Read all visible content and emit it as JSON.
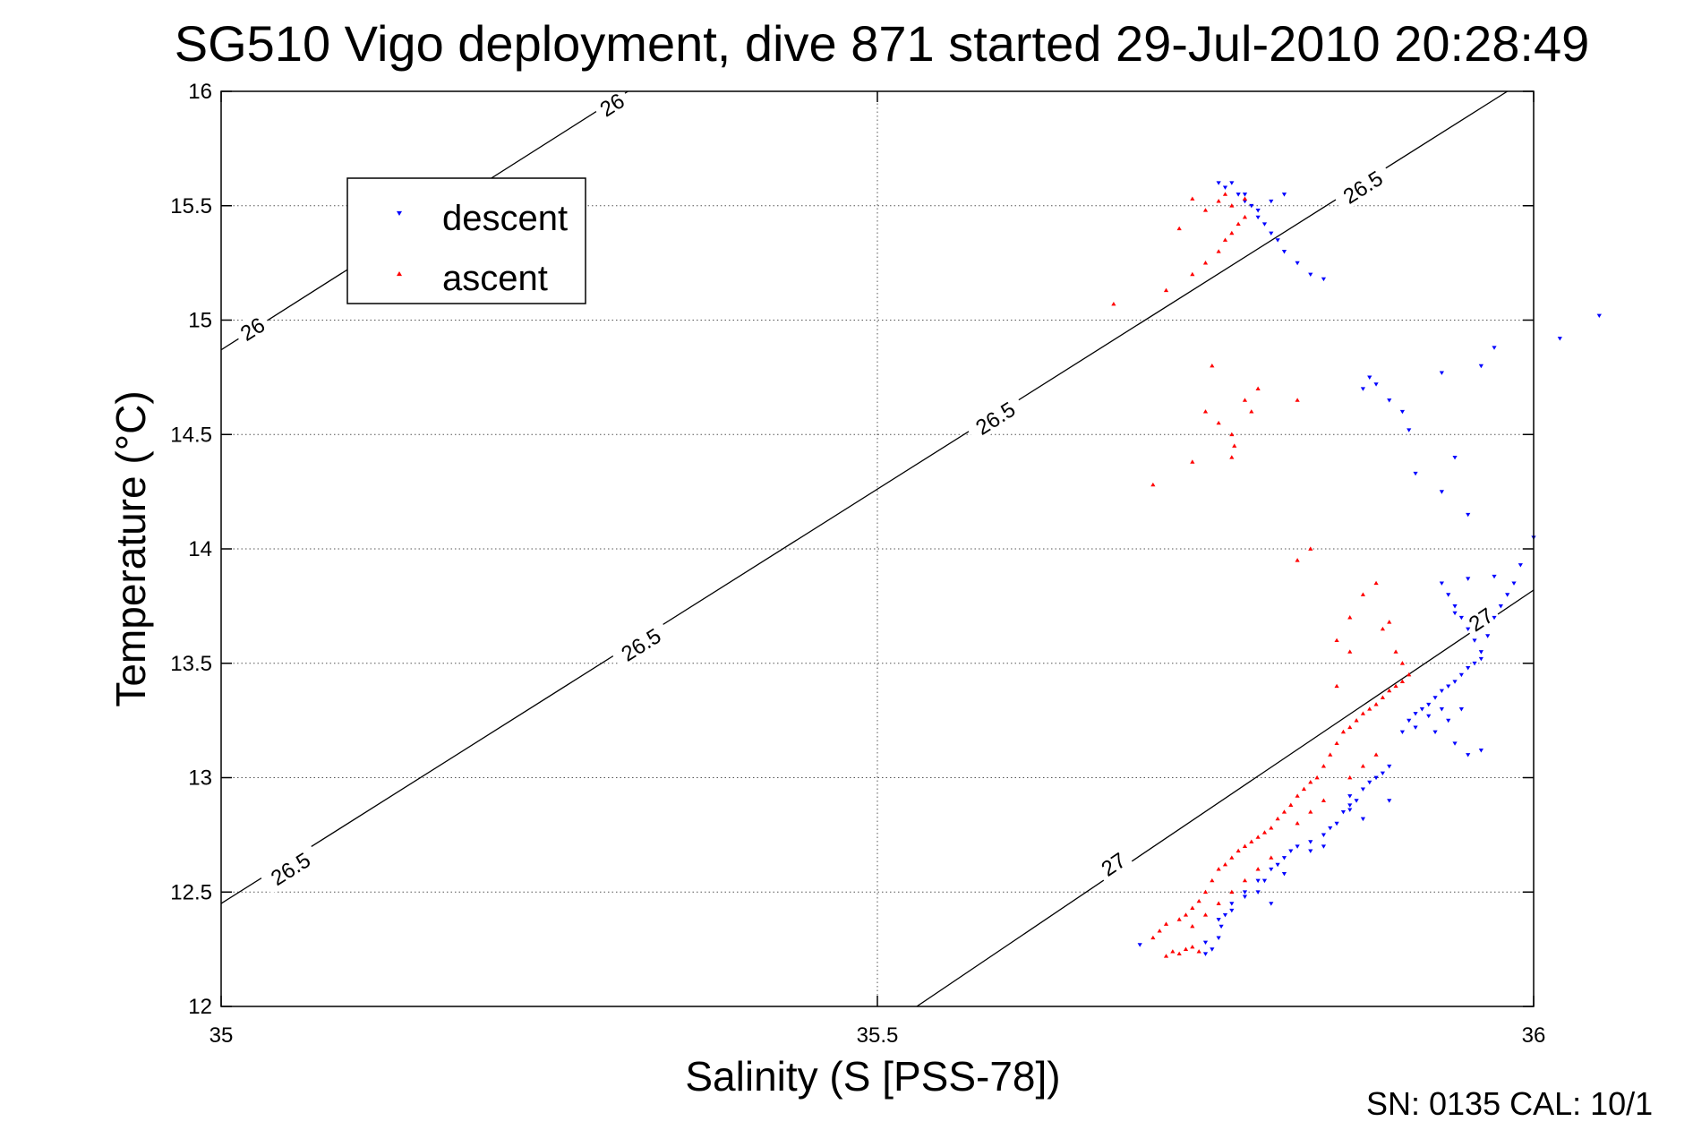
{
  "chart_data": {
    "type": "scatter",
    "title": "SG510 Vigo deployment, dive 871 started 29-Jul-2010 20:28:49",
    "xlabel": "Salinity (S [PSS-78])",
    "ylabel": "Temperature (°C)",
    "xlim": [
      35,
      36
    ],
    "ylim": [
      12,
      16
    ],
    "x_ticks": [
      "35",
      "35.5",
      "36"
    ],
    "y_ticks": [
      "12",
      "12.5",
      "13",
      "13.5",
      "14",
      "14.5",
      "15",
      "15.5",
      "16"
    ],
    "grid": true,
    "legend_position": "top-left",
    "footer": "SN: 0135  CAL: 10/1",
    "isopycnals": [
      {
        "label": "26",
        "points": [
          [
            35.0,
            14.87
          ],
          [
            35.31,
            16.0
          ]
        ],
        "label_positions": [
          [
            35.024,
            14.96
          ],
          [
            35.298,
            15.94
          ]
        ]
      },
      {
        "label": "26.5",
        "points": [
          [
            35.0,
            12.45
          ],
          [
            35.98,
            16.0
          ]
        ],
        "label_positions": [
          [
            35.053,
            12.6
          ],
          [
            35.32,
            13.58
          ],
          [
            35.59,
            14.57
          ],
          [
            35.87,
            15.58
          ]
        ]
      },
      {
        "label": "27",
        "points": [
          [
            35.53,
            12.0
          ],
          [
            36.0,
            13.82
          ]
        ],
        "label_positions": [
          [
            35.68,
            12.62
          ],
          [
            35.96,
            13.69
          ]
        ]
      }
    ],
    "series": [
      {
        "name": "descent",
        "color": "#0000ff",
        "marker": "triangle-down",
        "points": [
          [
            35.7,
            12.27
          ],
          [
            35.75,
            12.23
          ],
          [
            35.755,
            12.25
          ],
          [
            35.76,
            12.3
          ],
          [
            35.762,
            12.35
          ],
          [
            35.765,
            12.4
          ],
          [
            35.77,
            12.42
          ],
          [
            35.78,
            12.48
          ],
          [
            35.79,
            12.5
          ],
          [
            35.795,
            12.55
          ],
          [
            35.8,
            12.6
          ],
          [
            35.805,
            12.62
          ],
          [
            35.81,
            12.65
          ],
          [
            35.815,
            12.68
          ],
          [
            35.82,
            12.7
          ],
          [
            35.83,
            12.72
          ],
          [
            35.84,
            12.75
          ],
          [
            35.845,
            12.78
          ],
          [
            35.85,
            12.8
          ],
          [
            35.855,
            12.85
          ],
          [
            35.86,
            12.88
          ],
          [
            35.865,
            12.9
          ],
          [
            35.87,
            12.95
          ],
          [
            35.875,
            12.98
          ],
          [
            35.88,
            13.0
          ],
          [
            35.885,
            13.02
          ],
          [
            35.89,
            13.05
          ],
          [
            35.86,
            12.92
          ],
          [
            35.83,
            12.68
          ],
          [
            35.8,
            12.45
          ],
          [
            35.79,
            12.55
          ],
          [
            35.81,
            12.58
          ],
          [
            35.78,
            12.5
          ],
          [
            35.77,
            12.45
          ],
          [
            35.76,
            12.38
          ],
          [
            35.75,
            12.28
          ],
          [
            35.84,
            12.7
          ],
          [
            35.87,
            12.82
          ],
          [
            35.86,
            12.86
          ],
          [
            35.9,
            13.2
          ],
          [
            35.905,
            13.25
          ],
          [
            35.91,
            13.28
          ],
          [
            35.915,
            13.3
          ],
          [
            35.92,
            13.32
          ],
          [
            35.925,
            13.35
          ],
          [
            35.93,
            13.38
          ],
          [
            35.935,
            13.4
          ],
          [
            35.94,
            13.42
          ],
          [
            35.945,
            13.45
          ],
          [
            35.95,
            13.48
          ],
          [
            35.955,
            13.5
          ],
          [
            35.96,
            13.52
          ],
          [
            35.91,
            13.22
          ],
          [
            35.92,
            13.27
          ],
          [
            35.93,
            13.3
          ],
          [
            35.94,
            13.15
          ],
          [
            35.95,
            13.1
          ],
          [
            35.96,
            13.12
          ],
          [
            35.925,
            13.2
          ],
          [
            35.935,
            13.25
          ],
          [
            35.945,
            13.3
          ],
          [
            35.89,
            12.9
          ],
          [
            35.93,
            13.85
          ],
          [
            35.935,
            13.8
          ],
          [
            35.94,
            13.75
          ],
          [
            35.945,
            13.7
          ],
          [
            35.95,
            13.65
          ],
          [
            35.955,
            13.6
          ],
          [
            35.96,
            13.55
          ],
          [
            35.965,
            13.62
          ],
          [
            35.97,
            13.7
          ],
          [
            35.975,
            13.75
          ],
          [
            35.98,
            13.8
          ],
          [
            35.985,
            13.85
          ],
          [
            35.95,
            13.87
          ],
          [
            35.94,
            13.72
          ],
          [
            35.87,
            14.7
          ],
          [
            35.875,
            14.75
          ],
          [
            35.88,
            14.72
          ],
          [
            35.89,
            14.65
          ],
          [
            35.9,
            14.6
          ],
          [
            35.905,
            14.52
          ],
          [
            35.91,
            14.33
          ],
          [
            35.93,
            14.25
          ],
          [
            35.94,
            14.4
          ],
          [
            35.95,
            14.15
          ],
          [
            35.93,
            14.77
          ],
          [
            35.96,
            14.8
          ],
          [
            35.97,
            14.88
          ],
          [
            36.02,
            14.92
          ],
          [
            36.05,
            15.02
          ],
          [
            36.0,
            14.05
          ],
          [
            35.99,
            13.93
          ],
          [
            35.97,
            13.88
          ],
          [
            35.76,
            15.6
          ],
          [
            35.765,
            15.58
          ],
          [
            35.77,
            15.6
          ],
          [
            35.775,
            15.55
          ],
          [
            35.78,
            15.52
          ],
          [
            35.785,
            15.5
          ],
          [
            35.79,
            15.45
          ],
          [
            35.795,
            15.42
          ],
          [
            35.8,
            15.38
          ],
          [
            35.805,
            15.35
          ],
          [
            35.81,
            15.3
          ],
          [
            35.82,
            15.25
          ],
          [
            35.83,
            15.2
          ],
          [
            35.84,
            15.18
          ],
          [
            35.78,
            15.55
          ],
          [
            35.79,
            15.48
          ],
          [
            35.8,
            15.52
          ],
          [
            35.81,
            15.55
          ]
        ]
      },
      {
        "name": "ascent",
        "color": "#ff0000",
        "marker": "triangle-up",
        "points": [
          [
            35.72,
            12.22
          ],
          [
            35.725,
            12.24
          ],
          [
            35.73,
            12.23
          ],
          [
            35.735,
            12.25
          ],
          [
            35.74,
            12.26
          ],
          [
            35.745,
            12.24
          ],
          [
            35.71,
            12.3
          ],
          [
            35.715,
            12.33
          ],
          [
            35.72,
            12.36
          ],
          [
            35.73,
            12.38
          ],
          [
            35.735,
            12.4
          ],
          [
            35.74,
            12.43
          ],
          [
            35.745,
            12.46
          ],
          [
            35.75,
            12.5
          ],
          [
            35.755,
            12.55
          ],
          [
            35.76,
            12.6
          ],
          [
            35.765,
            12.62
          ],
          [
            35.77,
            12.65
          ],
          [
            35.775,
            12.68
          ],
          [
            35.78,
            12.7
          ],
          [
            35.785,
            12.72
          ],
          [
            35.79,
            12.74
          ],
          [
            35.795,
            12.76
          ],
          [
            35.8,
            12.78
          ],
          [
            35.805,
            12.82
          ],
          [
            35.81,
            12.85
          ],
          [
            35.815,
            12.88
          ],
          [
            35.82,
            12.92
          ],
          [
            35.825,
            12.95
          ],
          [
            35.83,
            12.98
          ],
          [
            35.835,
            13.0
          ],
          [
            35.84,
            13.05
          ],
          [
            35.845,
            13.1
          ],
          [
            35.85,
            13.15
          ],
          [
            35.855,
            13.2
          ],
          [
            35.86,
            13.22
          ],
          [
            35.865,
            13.25
          ],
          [
            35.87,
            13.28
          ],
          [
            35.875,
            13.3
          ],
          [
            35.88,
            13.32
          ],
          [
            35.885,
            13.35
          ],
          [
            35.89,
            13.38
          ],
          [
            35.895,
            13.4
          ],
          [
            35.9,
            13.42
          ],
          [
            35.905,
            13.45
          ],
          [
            35.76,
            12.45
          ],
          [
            35.77,
            12.5
          ],
          [
            35.78,
            12.55
          ],
          [
            35.79,
            12.6
          ],
          [
            35.8,
            12.65
          ],
          [
            35.75,
            12.4
          ],
          [
            35.74,
            12.35
          ],
          [
            35.82,
            12.8
          ],
          [
            35.83,
            12.85
          ],
          [
            35.84,
            12.9
          ],
          [
            35.86,
            13.0
          ],
          [
            35.87,
            13.05
          ],
          [
            35.88,
            13.1
          ],
          [
            35.85,
            13.6
          ],
          [
            35.86,
            13.7
          ],
          [
            35.87,
            13.8
          ],
          [
            35.88,
            13.85
          ],
          [
            35.885,
            13.65
          ],
          [
            35.89,
            13.68
          ],
          [
            35.895,
            13.55
          ],
          [
            35.9,
            13.5
          ],
          [
            35.86,
            13.55
          ],
          [
            35.85,
            13.4
          ],
          [
            35.83,
            14.0
          ],
          [
            35.82,
            13.95
          ],
          [
            35.71,
            14.28
          ],
          [
            35.74,
            14.38
          ],
          [
            35.75,
            14.6
          ],
          [
            35.755,
            14.8
          ],
          [
            35.77,
            14.5
          ],
          [
            35.772,
            14.45
          ],
          [
            35.78,
            14.65
          ],
          [
            35.785,
            14.6
          ],
          [
            35.79,
            14.7
          ],
          [
            35.82,
            14.65
          ],
          [
            35.76,
            14.55
          ],
          [
            35.77,
            14.4
          ],
          [
            35.68,
            15.07
          ],
          [
            35.72,
            15.13
          ],
          [
            35.74,
            15.2
          ],
          [
            35.75,
            15.25
          ],
          [
            35.76,
            15.3
          ],
          [
            35.765,
            15.35
          ],
          [
            35.77,
            15.38
          ],
          [
            35.775,
            15.42
          ],
          [
            35.78,
            15.45
          ],
          [
            35.76,
            15.52
          ],
          [
            35.765,
            15.55
          ],
          [
            35.77,
            15.5
          ],
          [
            35.74,
            15.53
          ],
          [
            35.75,
            15.48
          ],
          [
            35.73,
            15.4
          ],
          [
            35.78,
            15.53
          ]
        ]
      }
    ]
  }
}
